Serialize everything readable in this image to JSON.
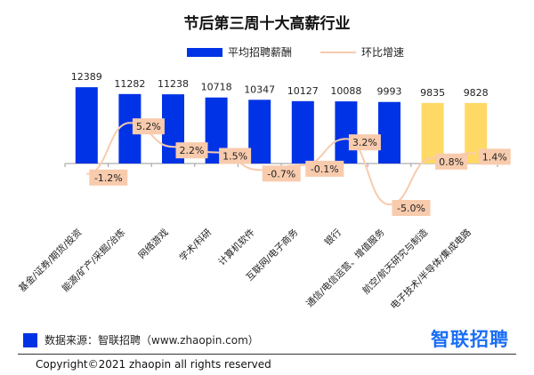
{
  "chart_data": {
    "type": "bar",
    "title": "节后第三周十大高薪行业",
    "categories": [
      "基金/证券/期货/投资",
      "能源/矿产/采掘/冶炼",
      "网络游戏",
      "学术/科研",
      "计算机软件",
      "互联网/电子商务",
      "银行",
      "通信/电信运营、增值服务",
      "航空/航天研究与制造",
      "电子技术/半导体/集成电路"
    ],
    "series": [
      {
        "name": "平均招聘薪酬",
        "type": "bar",
        "values": [
          12389,
          11282,
          11238,
          10718,
          10347,
          10127,
          10088,
          9993,
          9835,
          9828
        ],
        "labels": [
          "12389",
          "11282",
          "11238",
          "10718",
          "10347",
          "10127",
          "10088",
          "9993",
          "9835",
          "9828"
        ]
      },
      {
        "name": "环比增速",
        "type": "line",
        "values": [
          -1.2,
          5.2,
          2.2,
          1.5,
          -0.7,
          -0.1,
          3.2,
          -5.0,
          0.8,
          1.4
        ],
        "labels": [
          "-1.2%",
          "5.2%",
          "2.2%",
          "1.5%",
          "-0.7%",
          "-0.1%",
          "3.2%",
          "-5.0%",
          "0.8%",
          "1.4%"
        ]
      }
    ],
    "bar_colors": [
      "#0033e6",
      "#0033e6",
      "#0033e6",
      "#0033e6",
      "#0033e6",
      "#0033e6",
      "#0033e6",
      "#0033e6",
      "#ffd966",
      "#ffd966"
    ],
    "line_color": "#f8cbad",
    "legend": "top",
    "grid": false
  },
  "footer": {
    "source": "数据来源：智联招聘（www.zhaopin.com）",
    "logo": "智联招聘",
    "copyright": "Copyright©2021 zhaopin all rights reserved"
  }
}
